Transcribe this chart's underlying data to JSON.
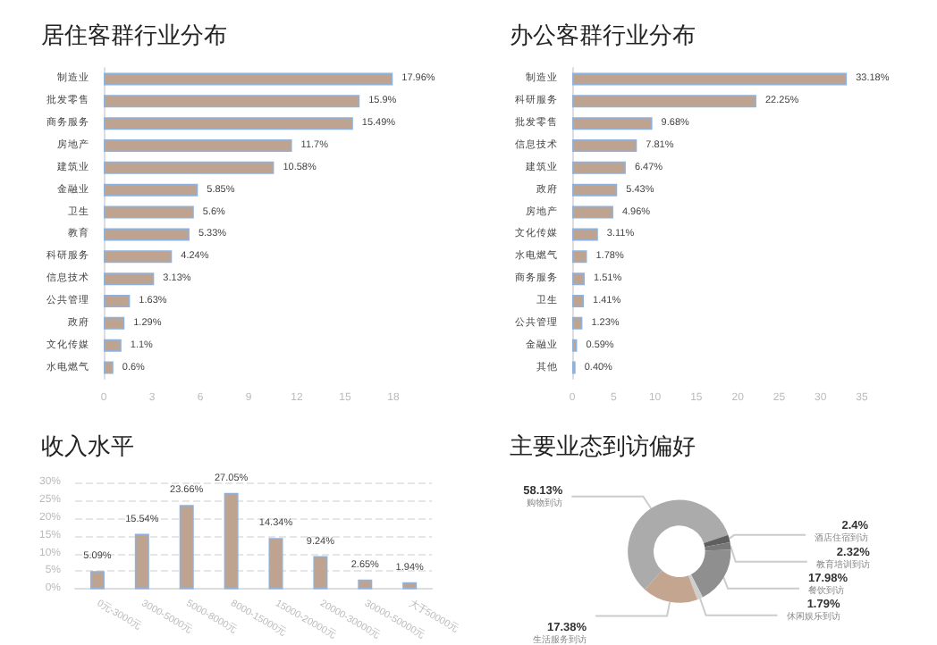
{
  "chart_data": [
    {
      "type": "bar",
      "title": "居住客群行业分布",
      "orientation": "horizontal",
      "categories": [
        "制造业",
        "批发零售",
        "商务服务",
        "房地产",
        "建筑业",
        "金融业",
        "卫生",
        "教育",
        "科研服务",
        "信息技术",
        "公共管理",
        "政府",
        "文化传媒",
        "水电燃气"
      ],
      "values": [
        17.96,
        15.9,
        15.49,
        11.7,
        10.58,
        5.85,
        5.6,
        5.33,
        4.24,
        3.13,
        1.63,
        1.29,
        1.1,
        0.6
      ],
      "value_labels": [
        "17.96%",
        "15.9%",
        "15.49%",
        "11.7%",
        "10.58%",
        "5.85%",
        "5.6%",
        "5.33%",
        "4.24%",
        "3.13%",
        "1.63%",
        "1.29%",
        "1.1%",
        "0.6%"
      ],
      "color": "#bfa391",
      "xlim": [
        0,
        18
      ],
      "xticks": [
        0,
        3,
        6,
        9,
        12,
        15,
        18
      ],
      "grid": false
    },
    {
      "type": "bar",
      "title": "办公客群行业分布",
      "orientation": "horizontal",
      "categories": [
        "制造业",
        "科研服务",
        "批发零售",
        "信息技术",
        "建筑业",
        "政府",
        "房地产",
        "文化传媒",
        "水电燃气",
        "商务服务",
        "卫生",
        "公共管理",
        "金融业",
        "其他"
      ],
      "values": [
        33.18,
        22.25,
        9.68,
        7.81,
        6.47,
        5.43,
        4.96,
        3.11,
        1.78,
        1.51,
        1.41,
        1.23,
        0.59,
        0.4
      ],
      "value_labels": [
        "33.18%",
        "22.25%",
        "9.68%",
        "7.81%",
        "6.47%",
        "5.43%",
        "4.96%",
        "3.11%",
        "1.78%",
        "1.51%",
        "1.41%",
        "1.23%",
        "0.59%",
        "0.40%"
      ],
      "color": "#bfa391",
      "xlim": [
        0,
        35
      ],
      "xticks": [
        0,
        5,
        10,
        15,
        20,
        25,
        30,
        35
      ],
      "grid": false
    },
    {
      "type": "bar",
      "title": "收入水平",
      "categories": [
        "0元-3000元",
        "3000-5000元",
        "5000-8000元",
        "8000-15000元",
        "15000-20000元",
        "20000-30000元",
        "30000-50000元",
        "大于50000元"
      ],
      "values": [
        5.09,
        15.54,
        23.66,
        27.05,
        14.34,
        9.24,
        2.65,
        1.94
      ],
      "value_labels": [
        "5.09%",
        "15.54%",
        "23.66%",
        "27.05%",
        "14.34%",
        "9.24%",
        "2.65%",
        "1.94%"
      ],
      "color": "#bfa391",
      "ylim": [
        0,
        30
      ],
      "yticks": [
        {
          "value": 0,
          "label": "0%"
        },
        {
          "value": 5,
          "label": "5%"
        },
        {
          "value": 10,
          "label": "10%"
        },
        {
          "value": 15,
          "label": "15%"
        },
        {
          "value": 20,
          "label": "20%"
        },
        {
          "value": 25,
          "label": "25%"
        },
        {
          "value": 30,
          "label": "30%"
        }
      ],
      "grid": "y"
    },
    {
      "type": "donut",
      "title": "主要业态到访偏好",
      "categories": [
        "购物到访",
        "酒店住宿到访",
        "教育培训到访",
        "餐饮到访",
        "休闲娱乐到访",
        "生活服务到访"
      ],
      "values": [
        58.13,
        2.4,
        2.32,
        17.98,
        1.79,
        17.38
      ],
      "value_labels": [
        "58.13%",
        "2.4%",
        "2.32%",
        "17.98%",
        "1.79%",
        "17.38%"
      ],
      "colors": [
        "#ababab",
        "#5f5f5f",
        "#7a7a7a",
        "#8f8f8f",
        "#cfcfcf",
        "#c4a590"
      ],
      "legend": false
    }
  ]
}
